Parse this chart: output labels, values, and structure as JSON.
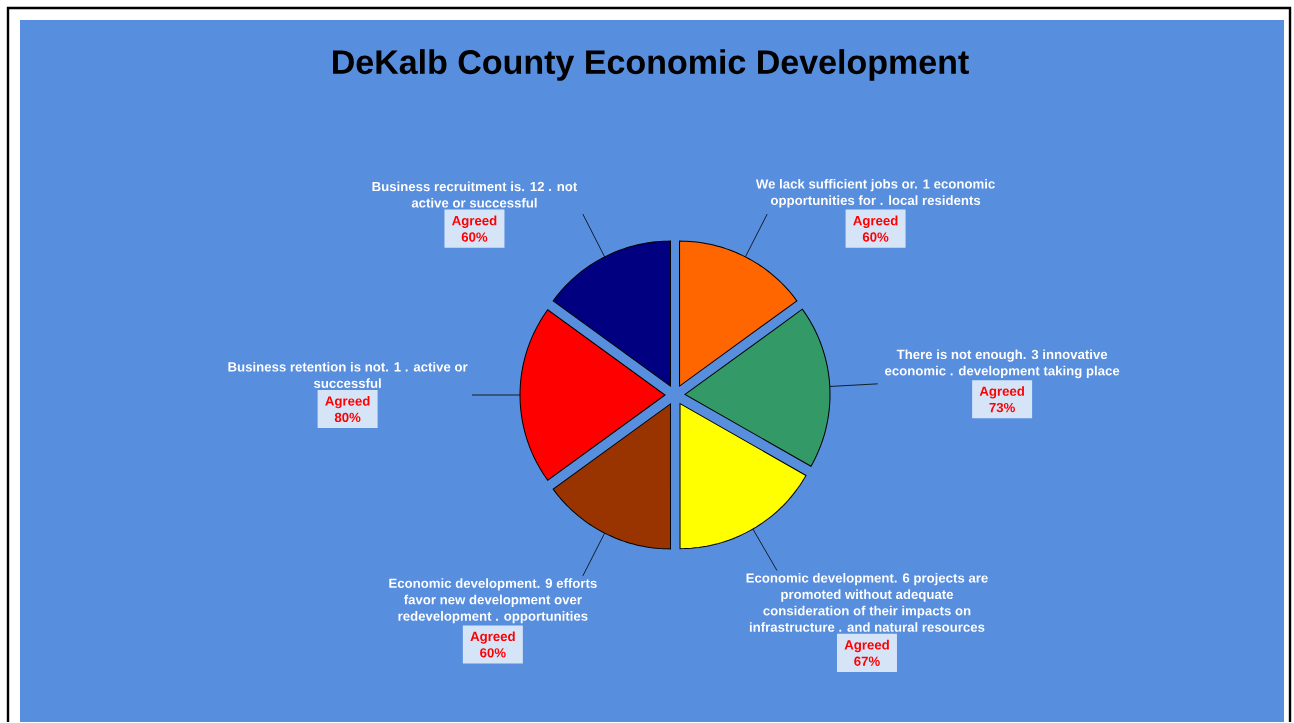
{
  "chart_data": {
    "type": "pie",
    "title": "DeKalb County Economic Development",
    "categories": [
      "We lack sufficient jobs or. 1 economic opportunities for . local residents",
      "There is not enough. 3 innovative economic . development taking place",
      "Economic development. 6 projects are promoted without adequate consideration of their impacts on infrastructure . and natural resources",
      "Economic development. 9 efforts favor new development over redevelopment . opportunities",
      "Business retention is not. 1 . active or successful",
      "Business recruitment is. 12 . not active or successful"
    ],
    "values": [
      60,
      73,
      67,
      60,
      80,
      60
    ],
    "colors": [
      "#ff6600",
      "#339966",
      "#ffff00",
      "#993300",
      "#ff0000",
      "#000080"
    ],
    "value_labels": [
      "Agreed 60%",
      "Agreed 73%",
      "Agreed 67%",
      "Agreed 60%",
      "Agreed 80%",
      "Agreed 60%"
    ]
  }
}
